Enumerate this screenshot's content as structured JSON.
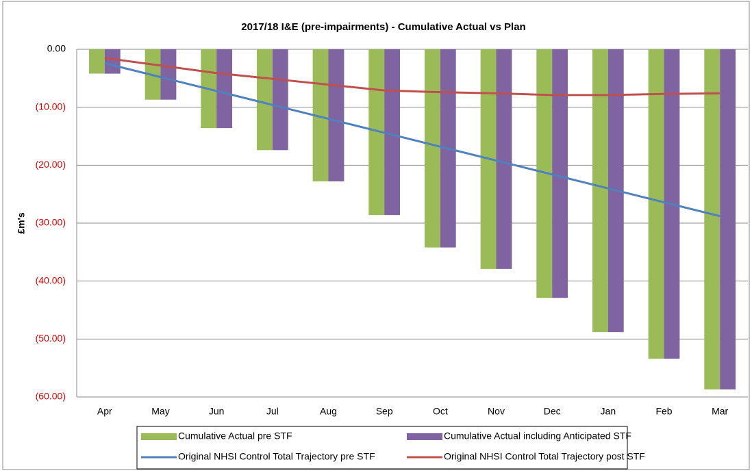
{
  "chart_data": {
    "type": "bar",
    "title": "2017/18 I&E (pre-impairments) - Cumulative Actual vs Plan",
    "y_label": "£m's",
    "categories": [
      "Apr",
      "May",
      "Jun",
      "Jul",
      "Aug",
      "Sep",
      "Oct",
      "Nov",
      "Dec",
      "Jan",
      "Feb",
      "Mar"
    ],
    "series": [
      {
        "name": "Cumulative Actual pre STF",
        "type": "bar",
        "color": "#9bbb59",
        "values": [
          -4.2,
          -8.7,
          -13.6,
          -17.4,
          -22.8,
          -28.6,
          -34.2,
          -37.9,
          -42.9,
          -48.8,
          -53.4,
          -58.7
        ]
      },
      {
        "name": "Cumulative Actual including Anticipated STF",
        "type": "bar",
        "color": "#8064a2",
        "values": [
          -4.2,
          -8.7,
          -13.6,
          -17.4,
          -22.8,
          -28.6,
          -34.2,
          -37.9,
          -42.9,
          -48.8,
          -53.4,
          -58.7
        ]
      },
      {
        "name": "Original NHSI Control Total Trajectory pre STF",
        "type": "line",
        "color": "#4f81bd",
        "values": [
          -2.4,
          -4.8,
          -7.2,
          -9.6,
          -12.0,
          -14.4,
          -16.8,
          -19.2,
          -21.6,
          -24.0,
          -26.4,
          -28.8
        ]
      },
      {
        "name": "Original NHSI Control Total Trajectory post STF",
        "type": "line",
        "color": "#c0504d",
        "values": [
          -1.5,
          -2.8,
          -4.1,
          -5.1,
          -6.1,
          -7.1,
          -7.4,
          -7.6,
          -7.9,
          -7.9,
          -7.7,
          -7.6
        ]
      }
    ],
    "ylim": [
      -60,
      0
    ],
    "yticks": [
      {
        "value": 0,
        "label": "0.00"
      },
      {
        "value": -10,
        "label": "(10.00)"
      },
      {
        "value": -20,
        "label": "(20.00)"
      },
      {
        "value": -30,
        "label": "(30.00)"
      },
      {
        "value": -40,
        "label": "(40.00)"
      },
      {
        "value": -50,
        "label": "(50.00)"
      },
      {
        "value": -60,
        "label": "(60.00)"
      }
    ],
    "grid": true,
    "legend": "bottom"
  }
}
